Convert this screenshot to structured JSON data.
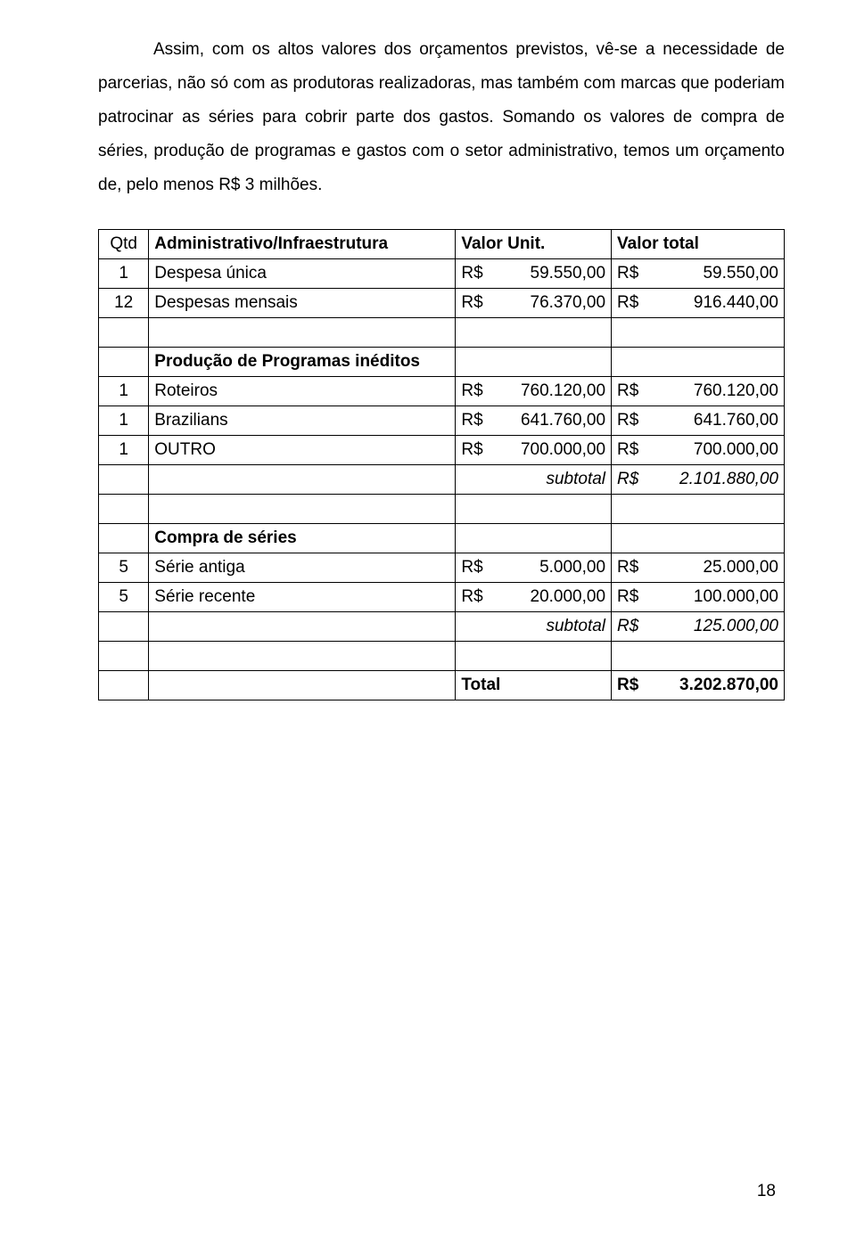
{
  "paragraph": "Assim, com os altos valores dos orçamentos previstos, vê-se a necessidade de parcerias, não só com as produtoras realizadoras, mas também com marcas que poderiam patrocinar as séries para cobrir parte dos gastos. Somando os valores de compra de séries, produção de programas e gastos com o setor administrativo, temos um orçamento de, pelo menos R$ 3 milhões.",
  "headers": {
    "qtd": "Qtd",
    "admin": "Administrativo/Infraestrutura",
    "unit": "Valor Unit.",
    "total": "Valor total"
  },
  "currency": "R$",
  "rows": {
    "r1": {
      "qtd": "1",
      "desc": "Despesa única",
      "unit": "59.550,00",
      "total": "59.550,00"
    },
    "r2": {
      "qtd": "12",
      "desc": "Despesas mensais",
      "unit": "76.370,00",
      "total": "916.440,00"
    },
    "sec1": "Produção de Programas inéditos",
    "r3": {
      "qtd": "1",
      "desc": "Roteiros",
      "unit": "760.120,00",
      "total": "760.120,00"
    },
    "r4": {
      "qtd": "1",
      "desc": "Brazilians",
      "unit": "641.760,00",
      "total": "641.760,00"
    },
    "r5": {
      "qtd": "1",
      "desc": " OUTRO",
      "unit": "700.000,00",
      "total": "700.000,00"
    },
    "sub1_label": "subtotal",
    "sub1_total": "2.101.880,00",
    "sec2": "Compra de séries",
    "r6": {
      "qtd": "5",
      "desc": "Série antiga",
      "unit": "5.000,00",
      "total": "25.000,00"
    },
    "r7": {
      "qtd": "5",
      "desc": "Série recente",
      "unit": "20.000,00",
      "total": "100.000,00"
    },
    "sub2_label": "subtotal",
    "sub2_total": "125.000,00",
    "total_label": "Total",
    "grand_total": "3.202.870,00"
  },
  "page_number": "18",
  "style": {
    "font_family": "Arial",
    "body_fontsize": 19,
    "text_color": "#000000",
    "background_color": "#ffffff",
    "border_color": "#000000",
    "line_height": 2.0,
    "col_widths": {
      "qtd": 46,
      "desc": 346,
      "unit": 176,
      "total": 196
    }
  }
}
